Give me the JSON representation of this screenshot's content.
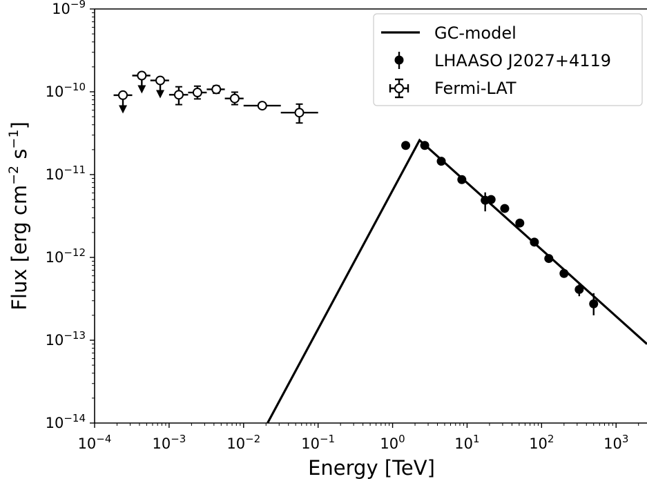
{
  "chart_data": {
    "type": "scatter",
    "xlabel": "Energy [TeV]",
    "ylabel_parts": [
      "Flux [erg cm",
      "−2",
      " s",
      "−1",
      "]"
    ],
    "x_scale": "log",
    "y_scale": "log",
    "xlim": [
      0.0001,
      2600
    ],
    "ylim": [
      1e-14,
      1e-09
    ],
    "x_ticks": [
      {
        "value": 0.0001,
        "base": "10",
        "exp": "−4"
      },
      {
        "value": 0.001,
        "base": "10",
        "exp": "−3"
      },
      {
        "value": 0.01,
        "base": "10",
        "exp": "−2"
      },
      {
        "value": 0.1,
        "base": "10",
        "exp": "−1"
      },
      {
        "value": 1,
        "base": "10",
        "exp": "0"
      },
      {
        "value": 10,
        "base": "10",
        "exp": "1"
      },
      {
        "value": 100,
        "base": "10",
        "exp": "2"
      },
      {
        "value": 1000,
        "base": "10",
        "exp": "3"
      }
    ],
    "y_ticks": [
      {
        "value": 1e-14,
        "base": "10",
        "exp": "−14"
      },
      {
        "value": 1e-13,
        "base": "10",
        "exp": "−13"
      },
      {
        "value": 1e-12,
        "base": "10",
        "exp": "−12"
      },
      {
        "value": 1e-11,
        "base": "10",
        "exp": "−11"
      },
      {
        "value": 1e-10,
        "base": "10",
        "exp": "−10"
      },
      {
        "value": 1e-09,
        "base": "10",
        "exp": "−9"
      }
    ],
    "legend_position": "top-right",
    "legend": [
      {
        "label": "GC-model",
        "kind": "line"
      },
      {
        "label": "LHAASO J2027+4119",
        "kind": "filled"
      },
      {
        "label": "Fermi-LAT",
        "kind": "open"
      }
    ],
    "series": [
      {
        "name": "GC-model",
        "kind": "line",
        "color": "#000000",
        "x": [
          0.021,
          2.3,
          2600
        ],
        "y": [
          1e-14,
          2.6e-11,
          9e-14
        ]
      },
      {
        "name": "LHAASO J2027+4119",
        "kind": "filled",
        "color": "#000000",
        "points": [
          {
            "x": 1.5,
            "y": 2.25e-11
          },
          {
            "x": 2.7,
            "y": 2.25e-11
          },
          {
            "x": 4.5,
            "y": 1.45e-11
          },
          {
            "x": 8.5,
            "y": 8.7e-12
          },
          {
            "x": 17.5,
            "y": 4.9e-12,
            "ylo": 3.6e-12,
            "yhi": 6.1e-12
          },
          {
            "x": 21,
            "y": 5e-12
          },
          {
            "x": 32,
            "y": 3.9e-12
          },
          {
            "x": 51,
            "y": 2.6e-12
          },
          {
            "x": 80,
            "y": 1.53e-12
          },
          {
            "x": 125,
            "y": 9.7e-13
          },
          {
            "x": 200,
            "y": 6.4e-13
          },
          {
            "x": 320,
            "y": 4.1e-13,
            "ylo": 3.4e-13,
            "yhi": 4.8e-13
          },
          {
            "x": 500,
            "y": 2.75e-13,
            "ylo": 2e-13,
            "yhi": 3.7e-13
          }
        ]
      },
      {
        "name": "Fermi-LAT",
        "kind": "open",
        "color": "#000000",
        "points": [
          {
            "x": 0.00024,
            "y": 9.1e-11,
            "xlo": 0.00018,
            "xhi": 0.00032,
            "upper_limit": true,
            "ul_to": 5.9e-11
          },
          {
            "x": 0.00043,
            "y": 1.57e-10,
            "xlo": 0.00032,
            "xhi": 0.00056,
            "upper_limit": true,
            "ul_to": 1.03e-10
          },
          {
            "x": 0.00076,
            "y": 1.37e-10,
            "xlo": 0.00056,
            "xhi": 0.001,
            "upper_limit": true,
            "ul_to": 9e-11
          },
          {
            "x": 0.00135,
            "y": 9.2e-11,
            "xlo": 0.001,
            "xhi": 0.0018,
            "ylo": 7e-11,
            "yhi": 1.15e-10
          },
          {
            "x": 0.0024,
            "y": 9.8e-11,
            "xlo": 0.0018,
            "xhi": 0.0032,
            "ylo": 8.2e-11,
            "yhi": 1.17e-10
          },
          {
            "x": 0.0043,
            "y": 1.07e-10,
            "xlo": 0.0032,
            "xhi": 0.0056,
            "ylo": 9.6e-11,
            "yhi": 1.18e-10
          },
          {
            "x": 0.0076,
            "y": 8.3e-11,
            "xlo": 0.0056,
            "xhi": 0.01,
            "ylo": 7e-11,
            "yhi": 9.9e-11
          },
          {
            "x": 0.0178,
            "y": 6.8e-11,
            "xlo": 0.01,
            "xhi": 0.0316,
            "ylo": 6.3e-11,
            "yhi": 7.2e-11
          },
          {
            "x": 0.056,
            "y": 5.6e-11,
            "xlo": 0.0316,
            "xhi": 0.1,
            "ylo": 4.2e-11,
            "yhi": 7.1e-11
          }
        ]
      }
    ]
  }
}
